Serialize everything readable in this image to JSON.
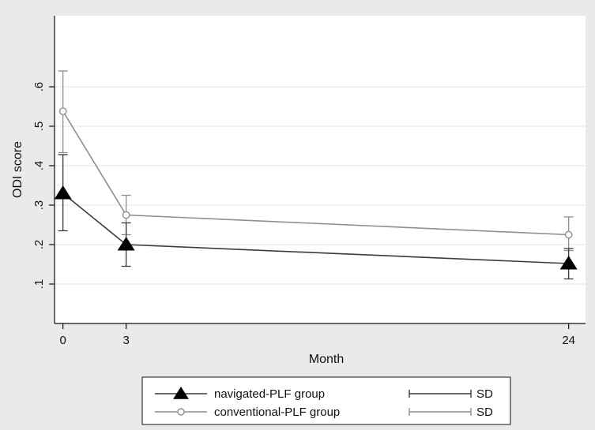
{
  "colors": {
    "background": "#eaeaea",
    "plot_bg": "#ffffff",
    "gridline": "#e6e6e6",
    "axis": "#111111",
    "navigated": "#3a3a3a",
    "conventional": "#8e8e8e"
  },
  "chart_data": {
    "type": "line",
    "title": "",
    "xlabel": "Month",
    "ylabel": "ODI score",
    "x": [
      0,
      3,
      24
    ],
    "xlim": [
      -0.4,
      24.8
    ],
    "ylim": [
      0.0,
      0.78
    ],
    "xticks": [
      0,
      3,
      24
    ],
    "xtick_labels": [
      "0",
      "3",
      "24"
    ],
    "yticks": [
      0.1,
      0.2,
      0.3,
      0.4,
      0.5,
      0.6
    ],
    "ytick_labels": [
      ".1",
      ".2",
      ".3",
      ".4",
      ".5",
      ".6"
    ],
    "grid": true,
    "legend_position": "bottom",
    "series": [
      {
        "name": "navigated-PLF group",
        "marker": "triangle",
        "color": "#3a3a3a",
        "values": [
          0.33,
          0.2,
          0.152
        ],
        "sd_low": [
          0.235,
          0.145,
          0.113
        ],
        "sd_high": [
          0.428,
          0.255,
          0.19
        ]
      },
      {
        "name": "conventional-PLF group",
        "marker": "circle",
        "color": "#8e8e8e",
        "values": [
          0.538,
          0.275,
          0.225
        ],
        "sd_low": [
          0.433,
          0.225,
          0.185
        ],
        "sd_high": [
          0.64,
          0.325,
          0.27
        ]
      }
    ],
    "legend": {
      "entries": [
        {
          "label": "navigated-PLF group",
          "sd_label": "SD"
        },
        {
          "label": "conventional-PLF group",
          "sd_label": "SD"
        }
      ]
    }
  }
}
